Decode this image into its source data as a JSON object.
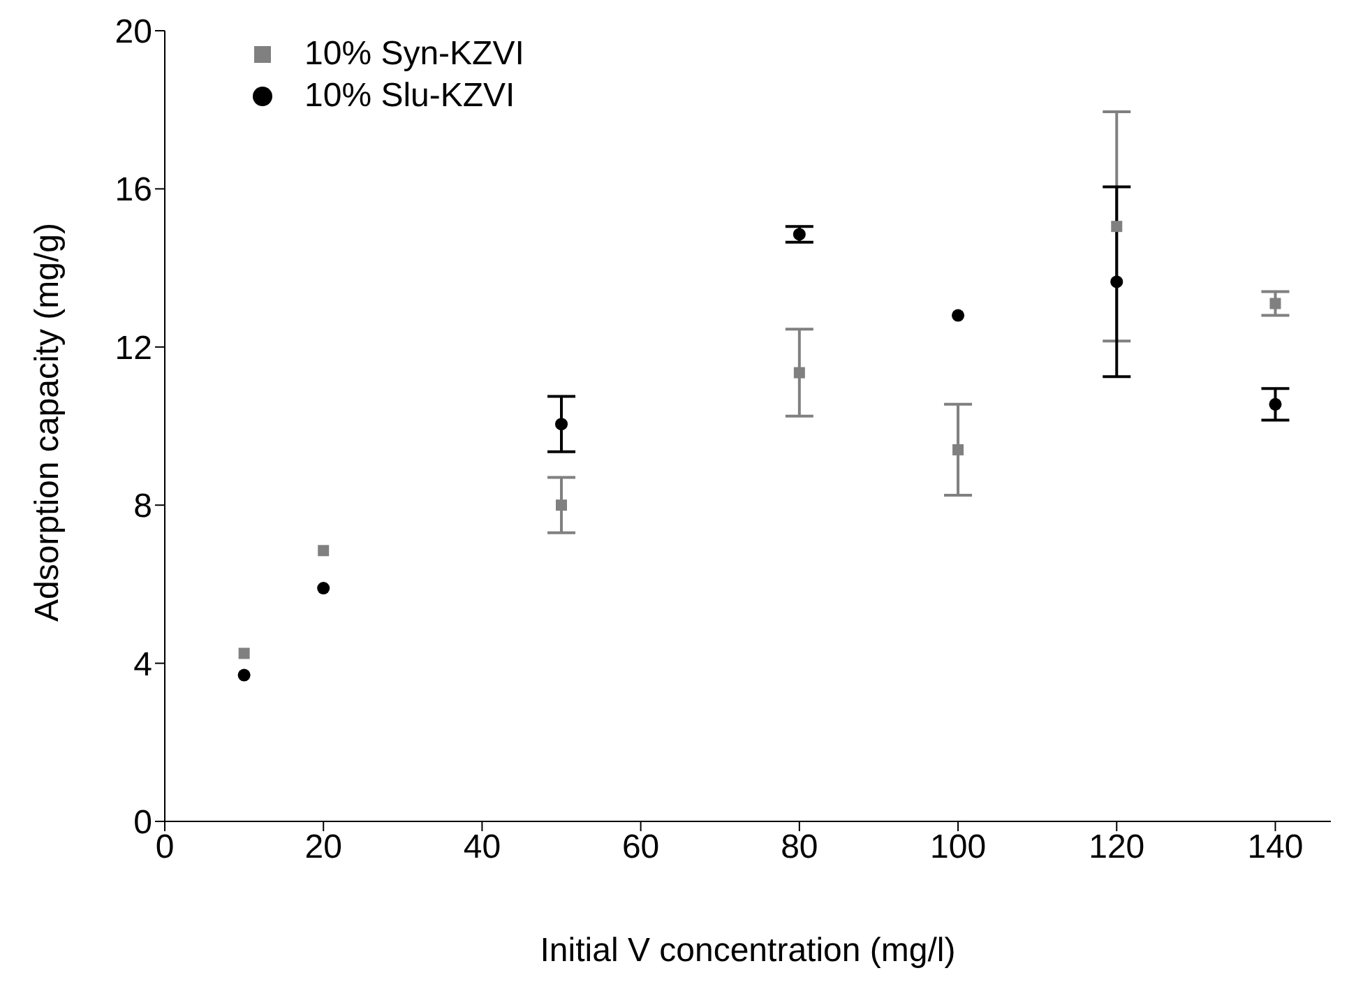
{
  "chart_data": {
    "type": "scatter",
    "xlabel": "Initial V concentration (mg/l)",
    "ylabel": "Adsorption capacity (mg/g)",
    "xlim": [
      0,
      147
    ],
    "xticks": [
      0,
      20,
      40,
      60,
      80,
      100,
      120,
      140
    ],
    "ylim": [
      0,
      20
    ],
    "yticks": [
      0,
      4,
      8,
      12,
      16,
      20
    ],
    "grid": false,
    "legend": "top left",
    "series": [
      {
        "name": "10% Syn-KZVI",
        "color": "#808080",
        "marker": "square",
        "x": [
          10,
          20,
          50,
          80,
          100,
          120,
          140
        ],
        "values": [
          4.25,
          6.85,
          8.0,
          11.35,
          9.4,
          15.05,
          13.1
        ],
        "errors": [
          null,
          null,
          0.7,
          1.1,
          1.15,
          2.9,
          0.3
        ]
      },
      {
        "name": "10% Slu-KZVI",
        "color": "#000000",
        "marker": "circle",
        "x": [
          10,
          20,
          50,
          80,
          100,
          120,
          140
        ],
        "values": [
          3.7,
          5.9,
          10.05,
          14.85,
          12.8,
          13.65,
          10.55
        ],
        "errors": [
          null,
          null,
          0.7,
          0.2,
          null,
          2.4,
          0.4
        ]
      }
    ]
  }
}
